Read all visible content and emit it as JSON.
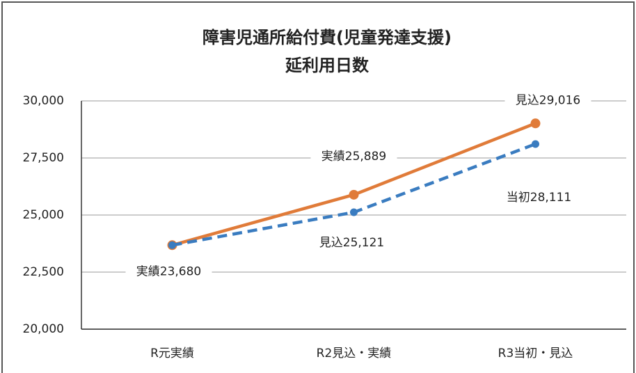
{
  "chart_data": {
    "type": "line",
    "title": "障害児通所給付費(児童発達支援)",
    "subtitle": "延利用日数",
    "categories": [
      "R元実績",
      "R2見込・実績",
      "R3当初・見込"
    ],
    "series": [
      {
        "color": "#e07b39",
        "dash": false,
        "values": [
          23680,
          25889,
          29016
        ],
        "value_labels": [
          "実績23,680",
          "実績25,889",
          "見込29,016"
        ]
      },
      {
        "color": "#3a7cc0",
        "dash": true,
        "values": [
          23680,
          25121,
          28111
        ],
        "value_labels": [
          null,
          "見込25,121",
          "当初28,111"
        ]
      }
    ],
    "ylim": [
      20000,
      30000
    ],
    "yticks": [
      {
        "value": 20000,
        "label": "20,000"
      },
      {
        "value": 22500,
        "label": "22,500"
      },
      {
        "value": 25000,
        "label": "25,000"
      },
      {
        "value": 27500,
        "label": "27,500"
      },
      {
        "value": 30000,
        "label": "30,000"
      }
    ],
    "grid": true
  }
}
